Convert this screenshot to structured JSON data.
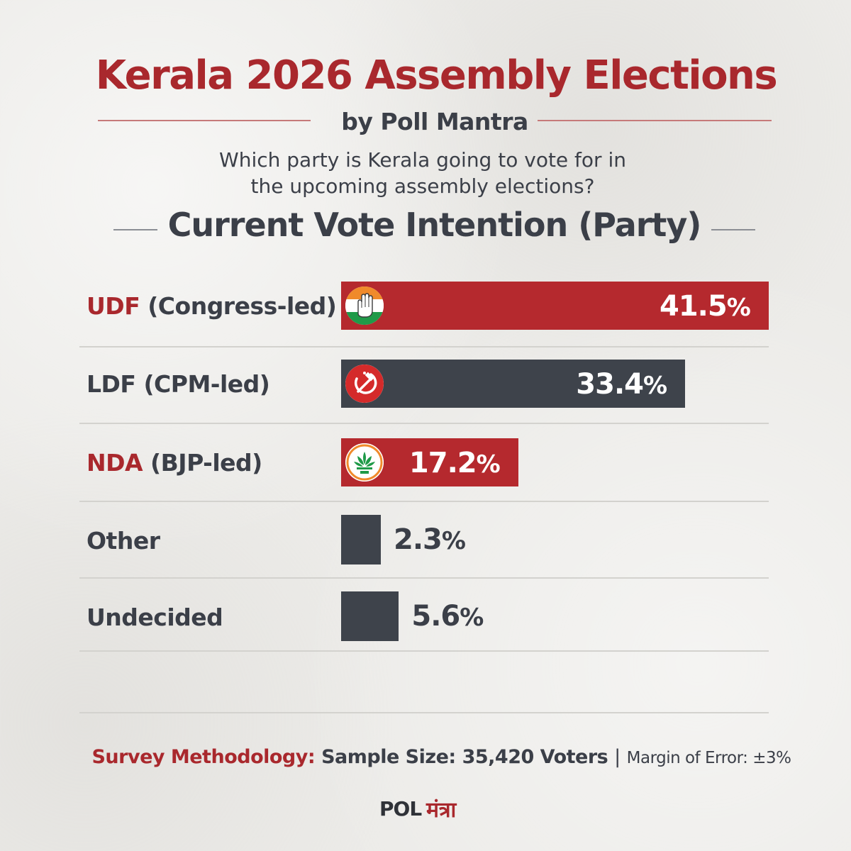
{
  "header": {
    "title": "Kerala 2026 Assembly Elections",
    "byline": "by Poll Mantra",
    "question_line1": "Which party is Kerala going to vote for in",
    "question_line2": "the upcoming assembly elections?",
    "section_title": "Current Vote Intention (Party)"
  },
  "colors": {
    "accent_red": "#b5292e",
    "dark_slate": "#3e434b",
    "title_red": "#a9282d"
  },
  "chart_data": {
    "type": "bar",
    "orientation": "horizontal",
    "title": "Current Vote Intention (Party)",
    "unit": "%",
    "categories": [
      "UDF (Congress-led)",
      "LDF (CPM-led)",
      "NDA (BJP-led)",
      "Other",
      "Undecided"
    ],
    "values": [
      41.5,
      33.4,
      17.2,
      2.3,
      5.6
    ],
    "bars": [
      {
        "abbr": "UDF",
        "detail": "(Congress-led)",
        "abbr_red": true,
        "value": 41.5,
        "value_text": "41.5",
        "color": "red",
        "icon": "congress-hand-icon"
      },
      {
        "abbr": "LDF",
        "detail": "(CPM-led)",
        "abbr_red": false,
        "value": 33.4,
        "value_text": "33.4",
        "color": "dark",
        "icon": "hammer-sickle-icon"
      },
      {
        "abbr": "NDA",
        "detail": "(BJP-led)",
        "abbr_red": true,
        "value": 17.2,
        "value_text": "17.2",
        "color": "red",
        "icon": "lotus-icon"
      },
      {
        "abbr": "Other",
        "detail": "",
        "abbr_red": false,
        "value": 2.3,
        "value_text": "2.3",
        "color": "dark",
        "icon": null
      },
      {
        "abbr": "Undecided",
        "detail": "",
        "abbr_red": false,
        "value": 5.6,
        "value_text": "5.6",
        "color": "dark",
        "icon": null
      }
    ],
    "percent_symbol": "%",
    "xlim": [
      0,
      41.5
    ]
  },
  "footer": {
    "methodology_label": "Survey Methodology:",
    "sample_size": "Sample Size: 35,420 Voters",
    "separator": "|",
    "margin_of_error": "Margin of Error: ±3%",
    "brand_latin": "POL",
    "brand_devanagari": "मंत्रा"
  }
}
